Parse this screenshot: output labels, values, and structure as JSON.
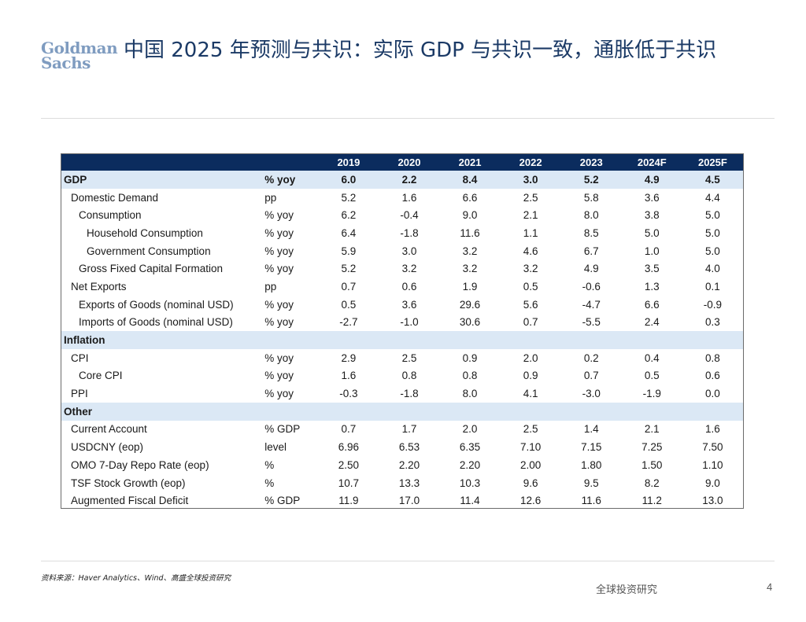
{
  "brand": {
    "line1": "Goldman",
    "line2": "Sachs"
  },
  "title": "中国 2025 年预测与共识：实际 GDP 与共识一致，通胀低于共识",
  "table": {
    "years": [
      "2019",
      "2020",
      "2021",
      "2022",
      "2023",
      "2024F",
      "2025F"
    ],
    "rows": [
      {
        "label": "GDP",
        "unit": "% yoy",
        "level": 0,
        "style": "gdp",
        "values": [
          "6.0",
          "2.2",
          "8.4",
          "3.0",
          "5.2",
          "4.9",
          "4.5"
        ]
      },
      {
        "label": "Domestic Demand",
        "unit": "pp",
        "level": 1,
        "values": [
          "5.2",
          "1.6",
          "6.6",
          "2.5",
          "5.8",
          "3.6",
          "4.4"
        ]
      },
      {
        "label": "Consumption",
        "unit": "% yoy",
        "level": 2,
        "values": [
          "6.2",
          "-0.4",
          "9.0",
          "2.1",
          "8.0",
          "3.8",
          "5.0"
        ]
      },
      {
        "label": "Household Consumption",
        "unit": "% yoy",
        "level": 3,
        "values": [
          "6.4",
          "-1.8",
          "11.6",
          "1.1",
          "8.5",
          "5.0",
          "5.0"
        ]
      },
      {
        "label": "Government Consumption",
        "unit": "% yoy",
        "level": 3,
        "values": [
          "5.9",
          "3.0",
          "3.2",
          "4.6",
          "6.7",
          "1.0",
          "5.0"
        ]
      },
      {
        "label": "Gross Fixed Capital Formation",
        "unit": "% yoy",
        "level": 2,
        "values": [
          "5.2",
          "3.2",
          "3.2",
          "3.2",
          "4.9",
          "3.5",
          "4.0"
        ]
      },
      {
        "label": "Net Exports",
        "unit": "pp",
        "level": 1,
        "values": [
          "0.7",
          "0.6",
          "1.9",
          "0.5",
          "-0.6",
          "1.3",
          "0.1"
        ]
      },
      {
        "label": "Exports of Goods (nominal USD)",
        "unit": "% yoy",
        "level": 2,
        "values": [
          "0.5",
          "3.6",
          "29.6",
          "5.6",
          "-4.7",
          "6.6",
          "-0.9"
        ]
      },
      {
        "label": "Imports of Goods (nominal USD)",
        "unit": "% yoy",
        "level": 2,
        "values": [
          "-2.7",
          "-1.0",
          "30.6",
          "0.7",
          "-5.5",
          "2.4",
          "0.3"
        ]
      },
      {
        "label": "Inflation",
        "unit": "",
        "level": 0,
        "style": "section",
        "values": [
          "",
          "",
          "",
          "",
          "",
          "",
          ""
        ]
      },
      {
        "label": "CPI",
        "unit": "% yoy",
        "level": 1,
        "values": [
          "2.9",
          "2.5",
          "0.9",
          "2.0",
          "0.2",
          "0.4",
          "0.8"
        ]
      },
      {
        "label": "Core CPI",
        "unit": "% yoy",
        "level": 2,
        "values": [
          "1.6",
          "0.8",
          "0.8",
          "0.9",
          "0.7",
          "0.5",
          "0.6"
        ]
      },
      {
        "label": "PPI",
        "unit": "% yoy",
        "level": 1,
        "values": [
          "-0.3",
          "-1.8",
          "8.0",
          "4.1",
          "-3.0",
          "-1.9",
          "0.0"
        ]
      },
      {
        "label": "Other",
        "unit": "",
        "level": 0,
        "style": "section",
        "values": [
          "",
          "",
          "",
          "",
          "",
          "",
          ""
        ]
      },
      {
        "label": "Current Account",
        "unit": "% GDP",
        "level": 1,
        "values": [
          "0.7",
          "1.7",
          "2.0",
          "2.5",
          "1.4",
          "2.1",
          "1.6"
        ]
      },
      {
        "label": "USDCNY (eop)",
        "unit": "level",
        "level": 1,
        "values": [
          "6.96",
          "6.53",
          "6.35",
          "7.10",
          "7.15",
          "7.25",
          "7.50"
        ]
      },
      {
        "label": "OMO 7-Day Repo Rate (eop)",
        "unit": "%",
        "level": 1,
        "values": [
          "2.50",
          "2.20",
          "2.20",
          "2.00",
          "1.80",
          "1.50",
          "1.10"
        ]
      },
      {
        "label": "TSF Stock Growth (eop)",
        "unit": "%",
        "level": 1,
        "values": [
          "10.7",
          "13.3",
          "10.3",
          "9.6",
          "9.5",
          "8.2",
          "9.0"
        ]
      },
      {
        "label": "Augmented Fiscal Deficit",
        "unit": "% GDP",
        "level": 1,
        "values": [
          "11.9",
          "17.0",
          "11.4",
          "12.6",
          "11.6",
          "11.2",
          "13.0"
        ]
      }
    ]
  },
  "source": "资料来源：Haver Analytics、Wind、高盛全球投资研究",
  "footer": "全球投资研究",
  "page_number": "4",
  "colors": {
    "header_bg": "#0b2c5e",
    "section_bg": "#dbe8f5",
    "title": "#1b3a66",
    "logo": "#7f9cc0"
  }
}
